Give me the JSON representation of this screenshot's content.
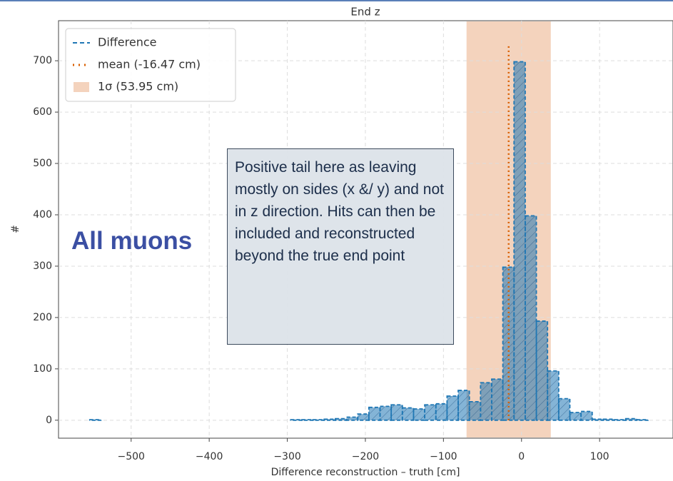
{
  "chart_data": {
    "type": "histogram",
    "title": "End z",
    "xlabel": "Difference reconstruction – truth [cm]",
    "ylabel": "#",
    "bins": [
      -553,
      -538.7,
      -524.4,
      -510.1,
      -495.8,
      -481.5,
      -467.2,
      -452.9,
      -438.6,
      -424.3,
      -410,
      -395.7,
      -381.4,
      -367.1,
      -352.8,
      -338.5,
      -324.2,
      -309.9,
      -295.6,
      -281.3,
      -267,
      -252.7,
      -238.4,
      -224.1,
      -209.8,
      -195.5,
      -181.2,
      -166.9,
      -152.6,
      -138.3,
      -124,
      -109.7,
      -95.4,
      -81.1,
      -66.8,
      -52.5,
      -38.2,
      -23.9,
      -9.6,
      4.7,
      19,
      33.3,
      47.6,
      61.9,
      76.2,
      90.5,
      104.8,
      119.1,
      133.4,
      147.7,
      162
    ],
    "series": [
      {
        "name": "Difference",
        "color": "#1f77b4",
        "values": [
          1,
          0,
          0,
          0,
          0,
          0,
          0,
          0,
          0,
          0,
          0,
          0,
          0,
          0,
          0,
          0,
          0,
          0,
          1,
          1,
          1,
          2,
          3,
          6,
          12,
          25,
          27,
          30,
          24,
          22,
          30,
          32,
          47,
          58,
          36,
          73,
          80,
          298,
          698,
          398,
          193,
          96,
          42,
          15,
          17,
          2,
          2,
          1,
          3,
          1
        ]
      }
    ],
    "mean": -16.47,
    "mean_name": "mean (-16.47 cm)",
    "mean_color": "#d95f02",
    "sigma": 53.95,
    "sigma_name": "1σ (53.95 cm)",
    "sigma_color": "#f4d3bd",
    "xlim": [
      -593,
      194
    ],
    "ylim": [
      -35,
      778
    ],
    "xticks": [
      {
        "value": -500,
        "label": "−500"
      },
      {
        "value": -400,
        "label": "−400"
      },
      {
        "value": -300,
        "label": "−300"
      },
      {
        "value": -200,
        "label": "−200"
      },
      {
        "value": -100,
        "label": "−100"
      },
      0,
      100
    ],
    "yticks": [
      0,
      100,
      200,
      300,
      400,
      500,
      600,
      700
    ],
    "grid": true,
    "legend": "upper left",
    "annotations": [
      "All muons",
      "Positive tail here as leaving mostly on sides (x &/ y) and not in z direction. Hits can then be included and reconstructed beyond the true end point"
    ]
  }
}
